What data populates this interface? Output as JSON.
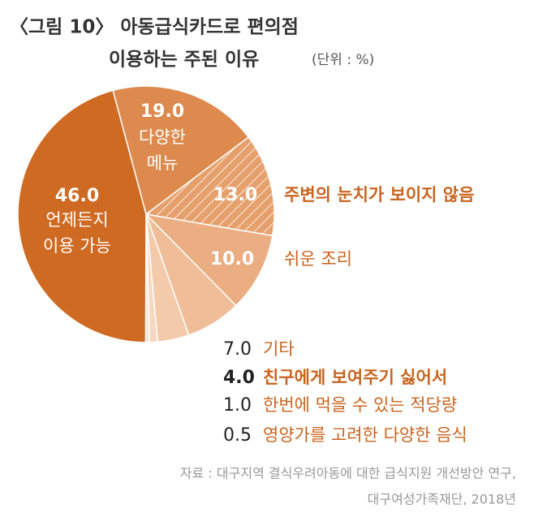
{
  "chart_data": {
    "type": "pie",
    "title": [
      "〈그림 10〉 아동급식카드로 편의점",
      "이용하는 주된 이유"
    ],
    "subtitle": "(단위 : %)",
    "categories": [
      "다양한 메뉴",
      "주변의 눈치가 보이지 않음",
      "쉬운 조리",
      "기타",
      "친구에게 보여주기 싫어서",
      "한번에 먹을 수 있는 적당량",
      "영양가를 고려한 다양한 음식",
      "언제든지 이용 가능"
    ],
    "values": [
      19.0,
      13.0,
      10.0,
      7.0,
      4.0,
      1.0,
      0.5,
      46.0
    ],
    "value_labels": [
      "19.0",
      "13.0",
      "10.0",
      "7.0",
      "4.0",
      "1.0",
      "0.5",
      "46.0"
    ],
    "colors": [
      "#dc8a4e",
      "#e6a06c",
      "#eaae82",
      "#efbd97",
      "#f3cbab",
      "#f6d7c0",
      "#f9e4d5",
      "#cf6a22"
    ],
    "source": [
      "자료 : 대구지역 결식우려아동에 대한 급식지원 개선방안 연구,",
      "대구여성가족재단, 2018년"
    ]
  }
}
